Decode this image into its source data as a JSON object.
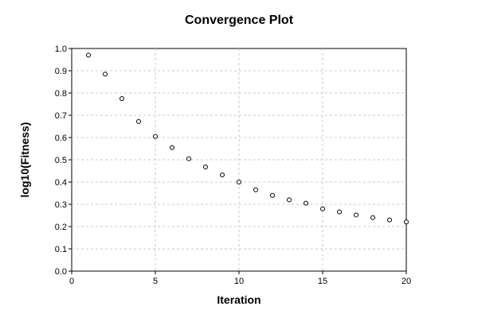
{
  "chart_data": {
    "type": "scatter",
    "title": "Convergence Plot",
    "xlabel": "Iteration",
    "ylabel": "log10(Fitness)",
    "xlim": [
      0,
      20
    ],
    "ylim": [
      0,
      1.0
    ],
    "xticks": [
      0,
      5,
      10,
      15,
      20
    ],
    "yticks": [
      0.0,
      0.1,
      0.2,
      0.3,
      0.4,
      0.5,
      0.6,
      0.7,
      0.8,
      0.9,
      1.0
    ],
    "ytick_labels": [
      "0.0",
      "0.1",
      "0.2",
      "0.3",
      "0.4",
      "0.5",
      "0.6",
      "0.7",
      "0.8",
      "0.9",
      "1.0"
    ],
    "grid": true,
    "x": [
      1,
      2,
      3,
      4,
      5,
      6,
      7,
      8,
      9,
      10,
      11,
      12,
      13,
      14,
      15,
      16,
      17,
      18,
      19,
      20
    ],
    "y": [
      0.97,
      0.885,
      0.775,
      0.672,
      0.605,
      0.555,
      0.505,
      0.468,
      0.432,
      0.4,
      0.365,
      0.34,
      0.32,
      0.305,
      0.28,
      0.266,
      0.252,
      0.24,
      0.23,
      0.221
    ]
  },
  "colors": {
    "background": "#ffffff",
    "grid": "#c8c8c8",
    "marker_stroke": "#000000",
    "marker_fill": "#ffffff"
  }
}
